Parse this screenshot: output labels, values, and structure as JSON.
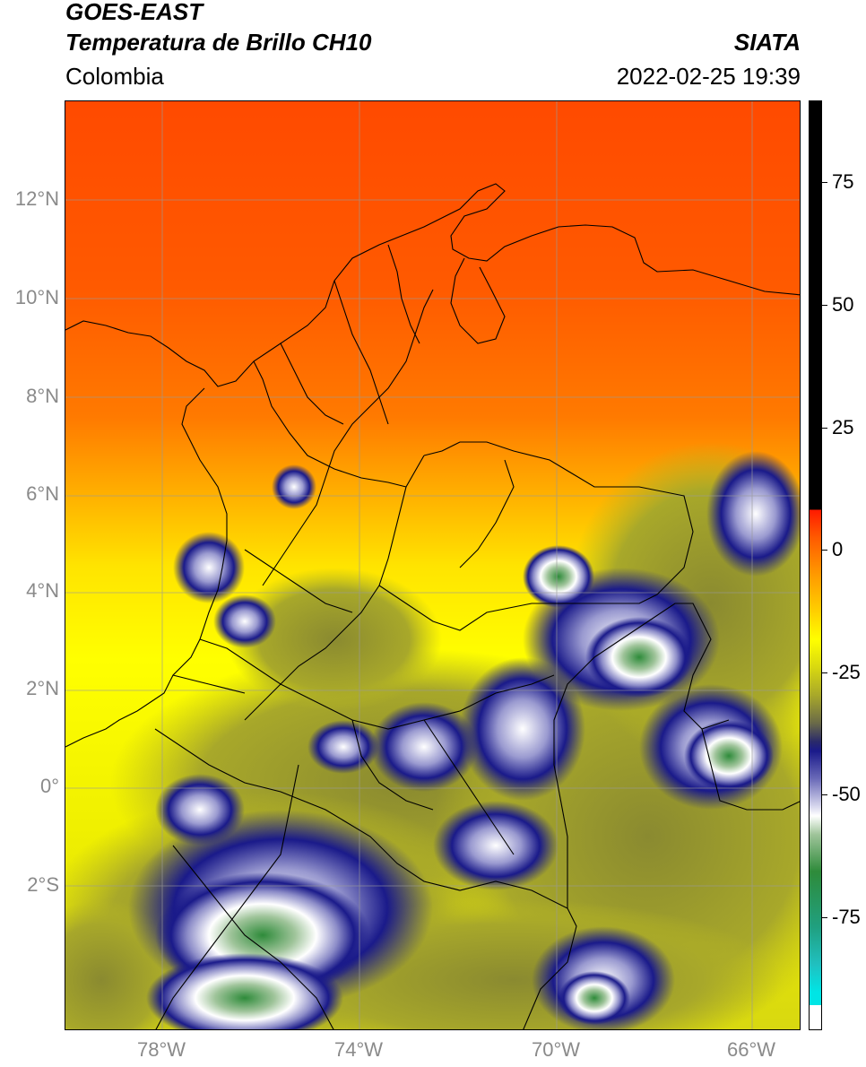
{
  "header": {
    "satellite": "GOES-EAST",
    "product": "Temperatura de Brillo CH10",
    "region": "Colombia",
    "organization": "SIATA",
    "timestamp": "2022-02-25 19:39"
  },
  "map": {
    "lat_labels": [
      "12°N",
      "10°N",
      "8°N",
      "6°N",
      "4°N",
      "2°N",
      "0°",
      "2°S"
    ],
    "lon_labels": [
      "78°W",
      "74°W",
      "70°W",
      "66°W"
    ]
  },
  "colorbar": {
    "tick_labels": [
      "75",
      "50",
      "25",
      "0",
      "-25",
      "-50",
      "-75"
    ],
    "colors": {
      "black": "#000000",
      "red": "#ff1a00",
      "orange": "#ff8800",
      "yellow": "#ffff00",
      "olive": "#a8a82a",
      "dark_olive": "#5a5a40",
      "navy": "#1a1a8a",
      "white": "#ffffff",
      "green": "#2e8b3a",
      "teal": "#20b2aa",
      "cyan": "#00e5e5"
    }
  }
}
